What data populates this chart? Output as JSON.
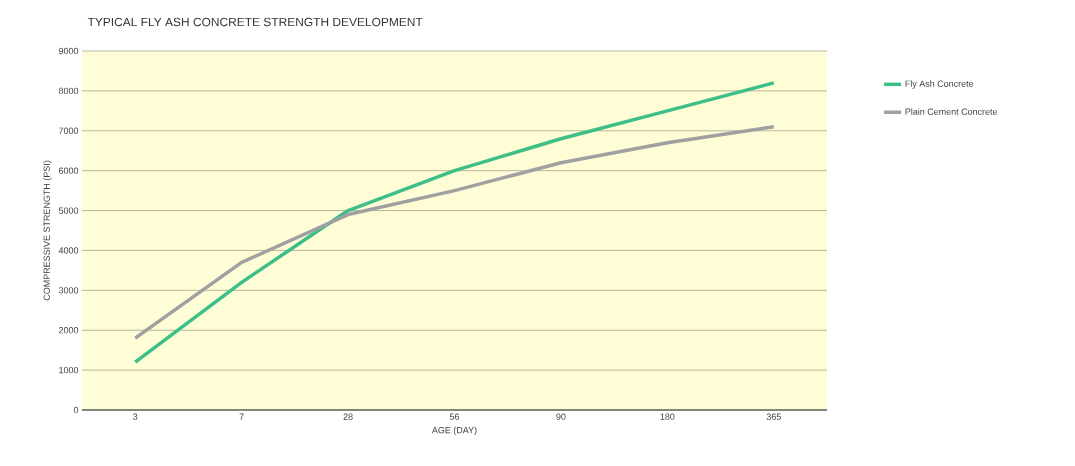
{
  "chart_data": {
    "type": "line",
    "title": "TYPICAL FLY ASH CONCRETE STRENGTH DEVELOPMENT",
    "xlabel": "AGE (DAY)",
    "ylabel": "COMPRESSIVE STRENGTH (PSI)",
    "categories": [
      "3",
      "7",
      "28",
      "56",
      "90",
      "180",
      "365"
    ],
    "series": [
      {
        "name": "Fly Ash Concrete",
        "color": "#3dbf87",
        "values": [
          1200,
          3200,
          5000,
          6000,
          6800,
          7500,
          8200
        ]
      },
      {
        "name": "Plain Cement Concrete",
        "color": "#a0a0a0",
        "values": [
          1800,
          3700,
          4900,
          5500,
          6200,
          6700,
          7100
        ]
      }
    ],
    "ylim": [
      0,
      9000
    ],
    "yticks": [
      0,
      1000,
      2000,
      3000,
      4000,
      5000,
      6000,
      7000,
      8000,
      9000
    ],
    "grid": "y",
    "legend": "right",
    "marker": "none",
    "line_style": "solid"
  }
}
